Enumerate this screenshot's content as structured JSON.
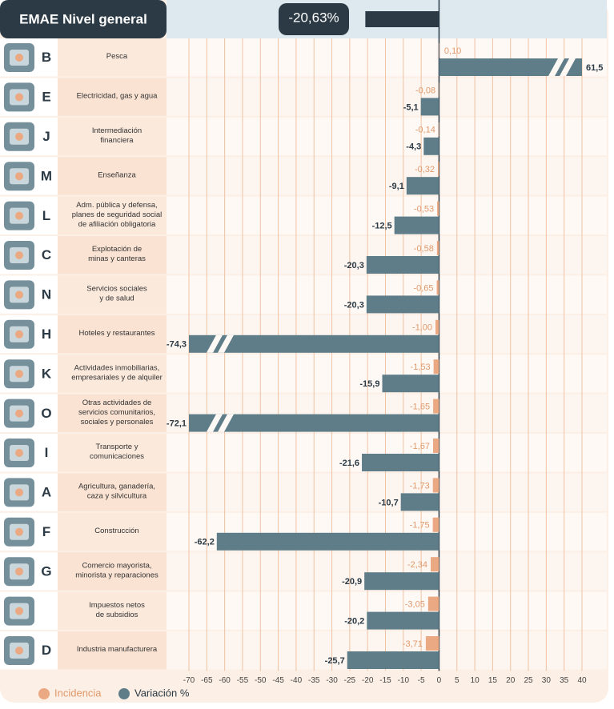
{
  "chart_data": {
    "type": "bar",
    "orientation": "horizontal",
    "title": "EMAE Nivel general",
    "total": {
      "value": -20.63,
      "value_label": "-20,63%",
      "color": "#2b3a45"
    },
    "categories": [
      "B",
      "E",
      "J",
      "M",
      "L",
      "C",
      "N",
      "H",
      "K",
      "O",
      "I",
      "A",
      "F",
      "G",
      null,
      "D"
    ],
    "sector_names": [
      [
        "Pesca"
      ],
      [
        "Electricidad, gas y agua"
      ],
      [
        "Intermediación",
        "financiera"
      ],
      [
        "Enseñanza"
      ],
      [
        "Adm. pública y defensa,",
        "planes de seguridad social",
        "de afiliación obligatoria"
      ],
      [
        "Explotación de",
        "minas y canteras"
      ],
      [
        "Servicios sociales",
        "y de salud"
      ],
      [
        "Hoteles y restaurantes"
      ],
      [
        "Actividades inmobiliarias,",
        "empresariales y de alquiler"
      ],
      [
        "Otras actividades de",
        "servicios comunitarios,",
        "sociales y personales"
      ],
      [
        "Transporte y",
        "comunicaciones"
      ],
      [
        "Agricultura, ganadería,",
        "caza y silvicultura"
      ],
      [
        "Construcción"
      ],
      [
        "Comercio mayorista,",
        "minorista y reparaciones"
      ],
      [
        "Impuestos netos",
        "de subsidios"
      ],
      [
        "Industria manufacturera"
      ]
    ],
    "series": [
      {
        "name": "Incidencia",
        "color": "#eaa982",
        "values": [
          0.1,
          -0.08,
          -0.14,
          -0.32,
          -0.53,
          -0.58,
          -0.65,
          -1.0,
          -1.53,
          -1.65,
          -1.67,
          -1.73,
          -1.75,
          -2.34,
          -3.05,
          -3.71
        ],
        "value_labels": [
          "0,10",
          "-0,08",
          "-0,14",
          "-0,32",
          "-0,53",
          "-0,58",
          "-0,65",
          "-1,00",
          "-1,53",
          "-1,65",
          "-1,67",
          "-1,73",
          "-1,75",
          "-2,34",
          "-3,05",
          "-3,71"
        ]
      },
      {
        "name": "Variación %",
        "color": "#5e7d89",
        "values": [
          61.5,
          -5.1,
          -4.3,
          -9.1,
          -12.5,
          -20.3,
          -20.3,
          -74.3,
          -15.9,
          -72.1,
          -21.6,
          -10.7,
          -62.2,
          -20.9,
          -20.2,
          -25.7
        ],
        "value_labels": [
          "61,5",
          "-5,1",
          "-4,3",
          "-9,1",
          "-12,5",
          "-20,3",
          "-20,3",
          "-74,3",
          "-15,9",
          "-72,1",
          "-21,6",
          "-10,7",
          "-62,2",
          "-20,9",
          "-20,2",
          "-25,7"
        ]
      }
    ],
    "xlim": [
      -70,
      40
    ],
    "xticks": [
      -70,
      -65,
      -60,
      -55,
      -50,
      -45,
      -40,
      -35,
      -30,
      -25,
      -20,
      -15,
      -10,
      -5,
      0,
      5,
      10,
      15,
      20,
      25,
      30,
      35,
      40
    ],
    "grid": true
  }
}
